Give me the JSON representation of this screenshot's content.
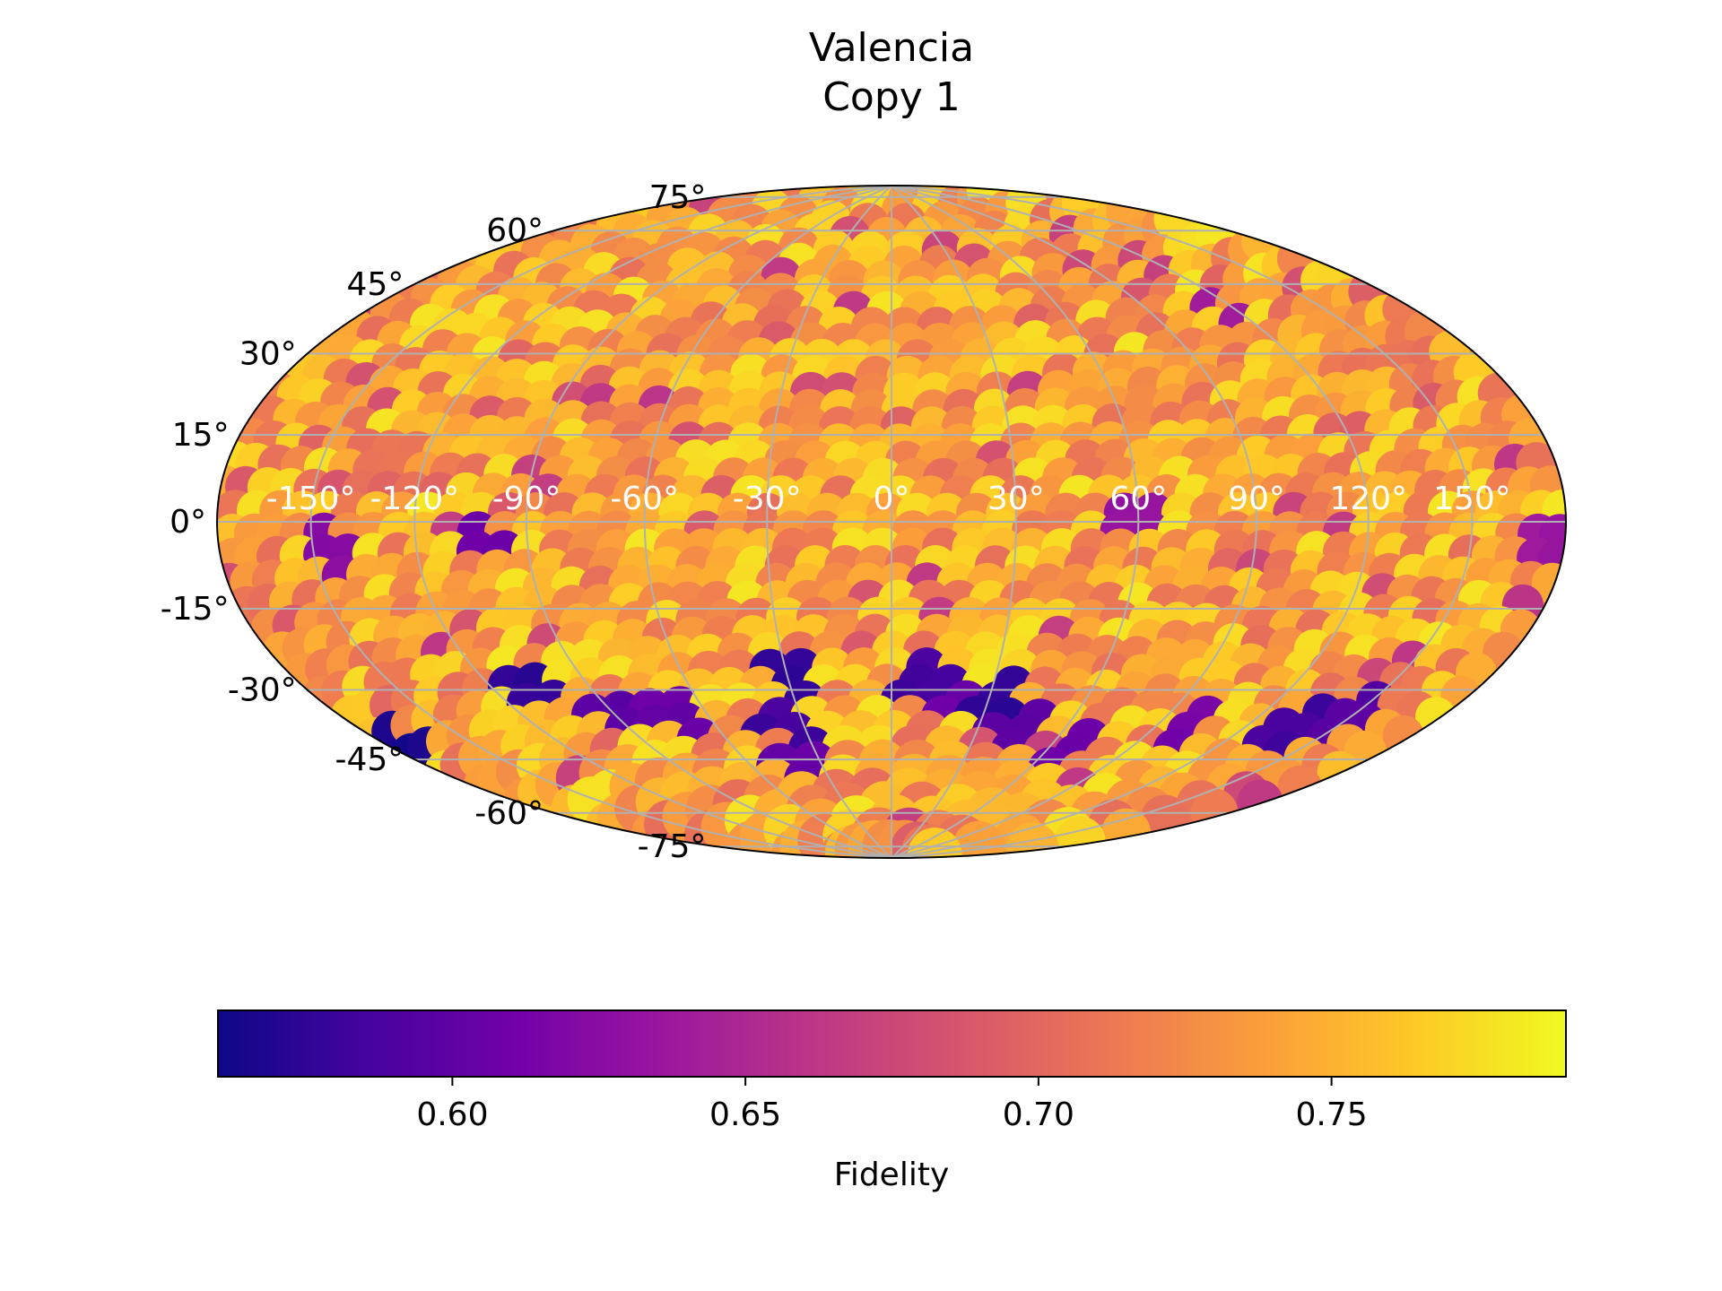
{
  "chart_data": {
    "type": "heatmap",
    "projection": "Aitoff / Hammer (full sky)",
    "title": [
      "Valencia",
      "Copy 1"
    ],
    "colormap": "plasma",
    "grid": true,
    "latitude_ticks": [
      "75°",
      "60°",
      "45°",
      "30°",
      "15°",
      "0°",
      "-15°",
      "-30°",
      "-45°",
      "-60°",
      "-75°"
    ],
    "longitude_ticks": [
      "-150°",
      "-120°",
      "-90°",
      "-60°",
      "-30°",
      "0°",
      "30°",
      "60°",
      "90°",
      "120°",
      "150°"
    ],
    "latitude_values": [
      75,
      60,
      45,
      30,
      15,
      0,
      -15,
      -30,
      -45,
      -60,
      -75
    ],
    "longitude_values": [
      -150,
      -120,
      -90,
      -60,
      -30,
      0,
      30,
      60,
      90,
      120,
      150
    ],
    "colorbar": {
      "label": "Fidelity",
      "vmin": 0.56,
      "vmax": 0.79,
      "ticks": [
        0.6,
        0.65,
        0.7,
        0.75
      ],
      "tick_labels": [
        "0.60",
        "0.65",
        "0.70",
        "0.75"
      ],
      "orientation": "horizontal"
    },
    "typical_fidelity_range": [
      0.56,
      0.79
    ],
    "low_fidelity_points": [
      {
        "lon": -170,
        "lat": -42,
        "value": 0.56
      },
      {
        "lon": -110,
        "lat": -38,
        "value": 0.57
      },
      {
        "lon": -102,
        "lat": -5,
        "value": 0.6
      },
      {
        "lon": -90,
        "lat": -46,
        "value": 0.59
      },
      {
        "lon": -72,
        "lat": -47,
        "value": 0.6
      },
      {
        "lon": -37,
        "lat": -52,
        "value": 0.58
      },
      {
        "lon": -40,
        "lat": -63,
        "value": 0.6
      },
      {
        "lon": -30,
        "lat": -40,
        "value": 0.57
      },
      {
        "lon": 10,
        "lat": -41,
        "value": 0.58
      },
      {
        "lon": 22,
        "lat": -46,
        "value": 0.6
      },
      {
        "lon": 32,
        "lat": -45,
        "value": 0.57
      },
      {
        "lon": 45,
        "lat": -53,
        "value": 0.59
      },
      {
        "lon": 75,
        "lat": -56,
        "value": 0.6
      },
      {
        "lon": 105,
        "lat": -49,
        "value": 0.61
      },
      {
        "lon": 142,
        "lat": -44,
        "value": 0.58
      },
      {
        "lon": 155,
        "lat": -40,
        "value": 0.59
      },
      {
        "lon": 175,
        "lat": -4,
        "value": 0.63
      },
      {
        "lon": -145,
        "lat": -5,
        "value": 0.62
      },
      {
        "lon": 115,
        "lat": 45,
        "value": 0.64
      },
      {
        "lon": 60,
        "lat": 0,
        "value": 0.63
      }
    ],
    "colors": {
      "grid": "#b0b0b0",
      "outline": "#000000",
      "cmap_stops": [
        "#0d0887",
        "#46039f",
        "#7201a8",
        "#9c179e",
        "#bd3786",
        "#d8576b",
        "#ed7953",
        "#fb9f3a",
        "#fdca26",
        "#f0f921"
      ]
    }
  }
}
